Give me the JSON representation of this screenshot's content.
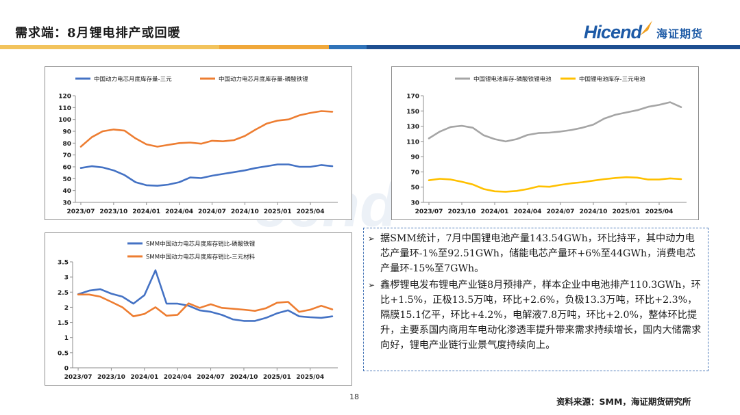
{
  "header": {
    "title": "需求端：8月锂电排产或回暖",
    "logo_text_a": "Hi",
    "logo_text_b": "cend",
    "logo_cn": "海证期货",
    "bar_colors": [
      "#f2c35c",
      "#f0a83a",
      "#2f73b9",
      "#1d4f91"
    ]
  },
  "chart_data": [
    {
      "type": "line",
      "id": "chart1",
      "xticks": [
        "2023/07",
        "2023/10",
        "2024/01",
        "2024/04",
        "2024/07",
        "2024/10",
        "2025/01",
        "2025/04"
      ],
      "ylim": [
        30,
        120
      ],
      "yticks": [
        30,
        40,
        50,
        60,
        70,
        80,
        90,
        100,
        110,
        120
      ],
      "series": [
        {
          "name": "中国动力电芯月度库存量-三元",
          "color": "#4472c4",
          "values": [
            59,
            60.5,
            59.5,
            57,
            53,
            47,
            44.5,
            44,
            45,
            47,
            51,
            50.5,
            52.5,
            54,
            55.5,
            57,
            59,
            60.5,
            62,
            62,
            60,
            60,
            61.5,
            60.5
          ]
        },
        {
          "name": "中国动力电芯月度库存量-磷酸铁锂",
          "color": "#ed7d31",
          "values": [
            77,
            85,
            90,
            91.5,
            90.5,
            84,
            79,
            77,
            78.5,
            80,
            80.5,
            79.5,
            82,
            81.5,
            82.5,
            86,
            91.5,
            96.5,
            99,
            100,
            103.5,
            105.5,
            107,
            106.5
          ]
        }
      ]
    },
    {
      "type": "line",
      "id": "chart2",
      "xticks": [
        "2023/07",
        "2023/10",
        "2024/01",
        "2024/04",
        "2024/07",
        "2024/10",
        "2025/01",
        "2025/04"
      ],
      "ylim": [
        30,
        170
      ],
      "yticks": [
        30,
        50,
        70,
        90,
        110,
        130,
        150,
        170
      ],
      "series": [
        {
          "name": "中国锂电池库存-磷酸铁锂电池",
          "color": "#a5a5a5",
          "values": [
            114,
            123,
            129,
            130.5,
            128,
            118,
            113,
            110,
            113,
            118.5,
            121,
            121.5,
            123,
            125,
            128,
            132,
            140,
            145,
            148,
            151,
            155.5,
            158,
            161.5,
            155
          ]
        },
        {
          "name": "中国锂电池库存-三元电池",
          "color": "#ffc000",
          "values": [
            59,
            61,
            60,
            57,
            53.5,
            47.5,
            44.5,
            44,
            45,
            47.5,
            51,
            50.5,
            53,
            55,
            56.5,
            58.5,
            60.5,
            62,
            63,
            62.5,
            60,
            60,
            61.5,
            60.5
          ]
        }
      ]
    },
    {
      "type": "line",
      "id": "chart3",
      "xticks": [
        "2023/07",
        "2023/10",
        "2024/01",
        "2024/04",
        "2024/07",
        "2024/10",
        "2025/01",
        "2025/04"
      ],
      "ylim": [
        0,
        3.5
      ],
      "yticks": [
        0,
        0.5,
        1,
        1.5,
        2,
        2.5,
        3,
        3.5
      ],
      "series": [
        {
          "name": "SMM中国动力电芯月度库存销比-磷酸铁锂",
          "color": "#4472c4",
          "values": [
            2.43,
            2.55,
            2.6,
            2.45,
            2.35,
            2.12,
            2.4,
            3.22,
            2.12,
            2.12,
            2.05,
            1.9,
            1.85,
            1.75,
            1.6,
            1.55,
            1.55,
            1.65,
            1.8,
            1.9,
            1.7,
            1.67,
            1.65,
            1.7
          ]
        },
        {
          "name": "SMM中国动力电芯月度库存销比-三元材料",
          "color": "#ed7d31",
          "values": [
            2.42,
            2.42,
            2.35,
            2.18,
            2.0,
            1.7,
            1.78,
            2.0,
            1.72,
            1.75,
            2.13,
            1.98,
            2.1,
            1.98,
            1.95,
            1.92,
            1.88,
            1.97,
            2.15,
            2.18,
            1.85,
            1.92,
            2.05,
            1.93
          ]
        }
      ]
    }
  ],
  "textbox": {
    "bullet1": "据SMM统计，7月中国锂电池产量143.54GWh，环比持平，其中动力电芯产量环-1%至92.51GWh，储能电芯产量环+6%至44GWh，消费电芯产量环-15%至7GWh。",
    "bullet2": "鑫椤锂电发布锂电产业链8月预排产，样本企业中电池排产110.3GWh，环比+1.5%，正极13.5万吨，环比+2.6%，负极13.3万吨，环比+2.3%，隔膜15.1亿平，环比+4.2%，电解液7.8万吨，环比+2.0%，整体环比提升，主要系国内商用车电动化渗透率提升带来需求持续增长，国内大储需求向好，锂电产业链行业景气度持续向上。"
  },
  "footer": {
    "page_number": "18",
    "source": "资料来源：SMM，海证期货研究所"
  }
}
